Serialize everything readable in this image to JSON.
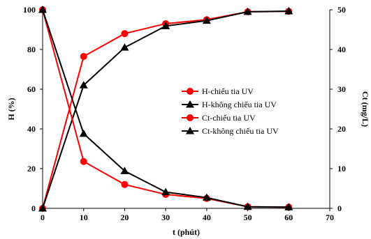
{
  "chart_data": {
    "type": "line",
    "xlabel": "t (phút)",
    "ylabel_left": "H (%)",
    "ylabel_right": "Ct (mg/L)",
    "xlim": [
      0,
      70
    ],
    "xticks": [
      0,
      10,
      20,
      30,
      40,
      50,
      60,
      70
    ],
    "ylim_left": [
      0,
      100
    ],
    "yticks_left": [
      0,
      20,
      40,
      60,
      80,
      100
    ],
    "ylim_right": [
      0,
      50
    ],
    "yticks_right": [
      0,
      10,
      20,
      30,
      40,
      50
    ],
    "grid": false,
    "legend_position": "center-right",
    "series": [
      {
        "name": "H-chiếu tia UV",
        "axis": "left",
        "marker": "circle",
        "color": "#ff0000",
        "x": [
          0,
          10,
          20,
          30,
          40,
          50,
          60
        ],
        "y": [
          0,
          76.5,
          88,
          93,
          95,
          99,
          99.2
        ]
      },
      {
        "name": "H-không chiếu tia UV",
        "axis": "left",
        "marker": "triangle",
        "color": "#000000",
        "x": [
          0,
          10,
          20,
          30,
          40,
          50,
          60
        ],
        "y": [
          0,
          62,
          81,
          91.8,
          94.5,
          99,
          99.3
        ]
      },
      {
        "name": "Ct-chiếu tia UV",
        "axis": "right",
        "marker": "circle",
        "color": "#ff0000",
        "x": [
          0,
          10,
          20,
          30,
          40,
          50,
          60
        ],
        "y": [
          50,
          11.8,
          6,
          3.5,
          2.5,
          0.4,
          0.3
        ]
      },
      {
        "name": "Ct-không chiếu tia UV",
        "axis": "right",
        "marker": "triangle",
        "color": "#000000",
        "x": [
          0,
          10,
          20,
          30,
          40,
          50,
          60
        ],
        "y": [
          50,
          18.8,
          9.4,
          4.1,
          2.7,
          0.4,
          0.3
        ]
      }
    ]
  }
}
